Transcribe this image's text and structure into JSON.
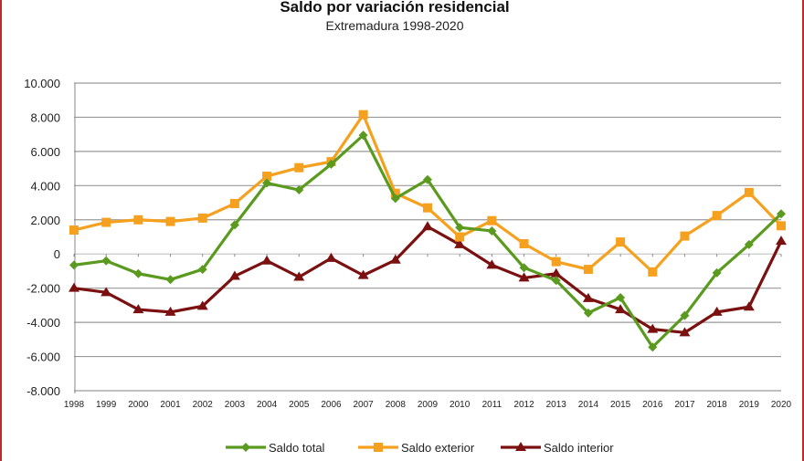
{
  "chart_data": {
    "type": "line",
    "title": "Saldo por variación residencial",
    "subtitle": "Extremadura 1998-2020",
    "xlabel": "",
    "ylabel": "",
    "ylim": [
      -8000,
      10000
    ],
    "yticks": [
      10000,
      8000,
      6000,
      4000,
      2000,
      0,
      -2000,
      -4000,
      -6000,
      -8000
    ],
    "ytick_labels": [
      "10.000",
      "8.000",
      "6.000",
      "4.000",
      "2.000",
      "0",
      "-2.000",
      "-4.000",
      "-6.000",
      "-8.000"
    ],
    "categories": [
      "1998",
      "1999",
      "2000",
      "2001",
      "2002",
      "2003",
      "2004",
      "2005",
      "2006",
      "2007",
      "2008",
      "2009",
      "2010",
      "2011",
      "2012",
      "2013",
      "2014",
      "2015",
      "2016",
      "2017",
      "2018",
      "2019",
      "2020"
    ],
    "grid": true,
    "legend_position": "bottom",
    "series": [
      {
        "name": "Saldo total",
        "color": "#5a9a1e",
        "marker": "diamond",
        "values": [
          -650,
          -400,
          -1150,
          -1500,
          -900,
          1700,
          4150,
          3750,
          5250,
          6950,
          3250,
          4350,
          1550,
          1350,
          -800,
          -1550,
          -3450,
          -2550,
          -5450,
          -3600,
          -1100,
          550,
          2350
        ]
      },
      {
        "name": "Saldo exterior",
        "color": "#f5a11f",
        "marker": "square",
        "values": [
          1400,
          1850,
          2000,
          1900,
          2100,
          2950,
          4550,
          5050,
          5400,
          8150,
          3550,
          2700,
          1000,
          1950,
          600,
          -450,
          -900,
          700,
          -1050,
          1050,
          2250,
          3600,
          1650
        ]
      },
      {
        "name": "Saldo interior",
        "color": "#7b1010",
        "marker": "triangle",
        "values": [
          -2000,
          -2250,
          -3250,
          -3400,
          -3050,
          -1300,
          -400,
          -1350,
          -250,
          -1250,
          -350,
          1600,
          550,
          -650,
          -1400,
          -1150,
          -2600,
          -3250,
          -4400,
          -4600,
          -3400,
          -3100,
          750
        ]
      }
    ]
  }
}
